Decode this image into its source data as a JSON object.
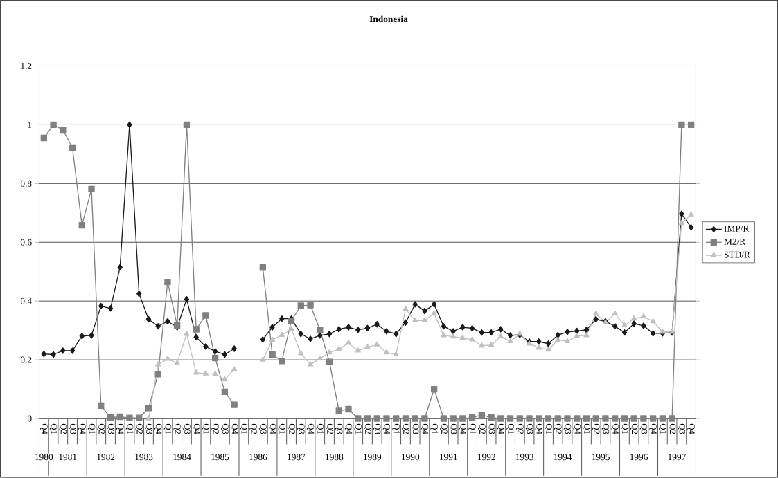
{
  "chart_data": {
    "type": "line",
    "title": "Indonesia",
    "categories": [
      "Q4",
      "Q1",
      "Q2",
      "Q3",
      "Q4",
      "Q1",
      "Q2",
      "Q3",
      "Q4",
      "Q1",
      "Q2",
      "Q3",
      "Q4",
      "Q1",
      "Q2",
      "Q3",
      "Q4",
      "Q1",
      "Q2",
      "Q3",
      "Q4",
      "Q1",
      "Q2",
      "Q3",
      "Q4",
      "Q1",
      "Q2",
      "Q3",
      "Q4",
      "Q1",
      "Q2",
      "Q3",
      "Q4",
      "Q1",
      "Q2",
      "Q3",
      "Q4",
      "Q1",
      "Q2",
      "Q3",
      "Q4",
      "Q1",
      "Q2",
      "Q3",
      "Q4",
      "Q1",
      "Q2",
      "Q3",
      "Q4",
      "Q1",
      "Q2",
      "Q3",
      "Q4",
      "Q1",
      "Q2",
      "Q3",
      "Q4",
      "Q1",
      "Q2",
      "Q3",
      "Q4",
      "Q1",
      "Q2",
      "Q3",
      "Q4",
      "Q1",
      "Q2",
      "Q3",
      "Q4"
    ],
    "series": [
      {
        "name": "IMP/R",
        "color": "#1a1a1a",
        "marker": "diamond",
        "values": [
          0.22,
          0.218,
          0.231,
          0.231,
          0.281,
          0.283,
          0.383,
          0.375,
          0.515,
          1.0,
          0.425,
          0.338,
          0.314,
          0.331,
          0.311,
          0.406,
          0.277,
          0.245,
          0.229,
          0.218,
          0.238,
          null,
          null,
          0.269,
          0.311,
          0.34,
          0.34,
          0.288,
          0.271,
          0.283,
          0.288,
          0.304,
          0.311,
          0.302,
          0.308,
          0.321,
          0.297,
          0.288,
          0.327,
          0.389,
          0.366,
          0.389,
          0.314,
          0.297,
          0.311,
          0.307,
          0.293,
          0.293,
          0.304,
          0.283,
          0.285,
          0.262,
          0.262,
          0.255,
          0.284,
          0.295,
          0.298,
          0.302,
          0.338,
          0.331,
          0.314,
          0.293,
          0.323,
          0.316,
          0.29,
          0.29,
          0.293,
          0.697,
          0.651
        ]
      },
      {
        "name": "M2/R",
        "color": "#808080",
        "marker": "square",
        "values": [
          0.955,
          1.0,
          0.983,
          0.922,
          0.658,
          0.781,
          0.044,
          0.003,
          0.006,
          0.002,
          0.002,
          0.036,
          0.151,
          0.465,
          0.317,
          1.0,
          0.304,
          0.351,
          0.206,
          0.091,
          0.047,
          null,
          null,
          0.514,
          0.218,
          0.196,
          0.333,
          0.384,
          0.386,
          0.302,
          0.193,
          0.026,
          0.032,
          0,
          0,
          0,
          0,
          0,
          0,
          0,
          0,
          0.1,
          0,
          0,
          0,
          0.003,
          0.012,
          0.003,
          0,
          0,
          0,
          0,
          0,
          0,
          0,
          0,
          0,
          0,
          0,
          0,
          0,
          0,
          0,
          0,
          0,
          0,
          0,
          1.0,
          1.0
        ]
      },
      {
        "name": "STD/R",
        "color": "#c0c0c0",
        "marker": "triangle",
        "values": [
          null,
          null,
          null,
          null,
          null,
          null,
          null,
          null,
          null,
          null,
          null,
          0,
          0.184,
          0.203,
          0.189,
          0.288,
          0.156,
          0.153,
          0.152,
          0.133,
          0.167,
          null,
          null,
          0.2,
          0.268,
          0.284,
          0.304,
          0.222,
          0.184,
          0.204,
          0.225,
          0.236,
          0.257,
          0.231,
          0.243,
          0.252,
          0.225,
          0.218,
          0.373,
          0.334,
          0.334,
          0.358,
          0.283,
          0.279,
          0.274,
          0.269,
          0.248,
          0.25,
          0.279,
          0.263,
          0.288,
          0.255,
          0.241,
          0.234,
          0.268,
          0.263,
          0.281,
          0.283,
          0.357,
          0.327,
          0.357,
          0.317,
          0.34,
          0.347,
          0.331,
          0.295,
          0.295,
          0.665,
          0.694
        ]
      }
    ],
    "ylim": [
      0,
      1.2
    ],
    "yticks": [
      0,
      0.2,
      0.4,
      0.6,
      0.8,
      1,
      1.2
    ],
    "grid": "y",
    "legend": "right",
    "annotations": [
      "1980",
      "1981",
      "1982",
      "1983",
      "1984",
      "1985",
      "1986",
      "1987",
      "1988",
      "1989",
      "1990",
      "1991",
      "1992",
      "1993",
      "1994",
      "1995",
      "1996",
      "1997"
    ]
  }
}
